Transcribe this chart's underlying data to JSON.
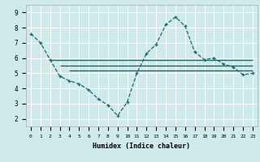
{
  "title": "",
  "xlabel": "Humidex (Indice chaleur)",
  "ylabel": "",
  "background_color": "#ceeaea",
  "grid_color": "#ffffff",
  "line_color": "#1a6b6b",
  "xlim": [
    -0.5,
    23.5
  ],
  "ylim": [
    1.5,
    9.5
  ],
  "xtick_labels": [
    "0",
    "1",
    "2",
    "3",
    "4",
    "5",
    "6",
    "7",
    "8",
    "9",
    "10",
    "11",
    "12",
    "13",
    "14",
    "15",
    "16",
    "17",
    "18",
    "19",
    "20",
    "21",
    "22",
    "23"
  ],
  "ytick_values": [
    2,
    3,
    4,
    5,
    6,
    7,
    8,
    9
  ],
  "series1_x": [
    0,
    1,
    2,
    3,
    4,
    5,
    6,
    7,
    8,
    9,
    10,
    11,
    12,
    13,
    14,
    15,
    16,
    17,
    18,
    19,
    20,
    21,
    22,
    23
  ],
  "series1_y": [
    7.6,
    7.0,
    5.9,
    4.8,
    4.5,
    4.3,
    3.9,
    3.3,
    2.9,
    2.2,
    3.1,
    5.0,
    6.3,
    6.9,
    8.2,
    8.7,
    8.1,
    6.4,
    5.9,
    6.0,
    5.6,
    5.4,
    4.9,
    5.0
  ],
  "hlines": [
    {
      "xstart": 2,
      "xend": 23,
      "y": 5.9
    },
    {
      "xstart": 3,
      "xend": 23,
      "y": 5.5
    },
    {
      "xstart": 4,
      "xend": 23,
      "y": 5.2
    }
  ]
}
